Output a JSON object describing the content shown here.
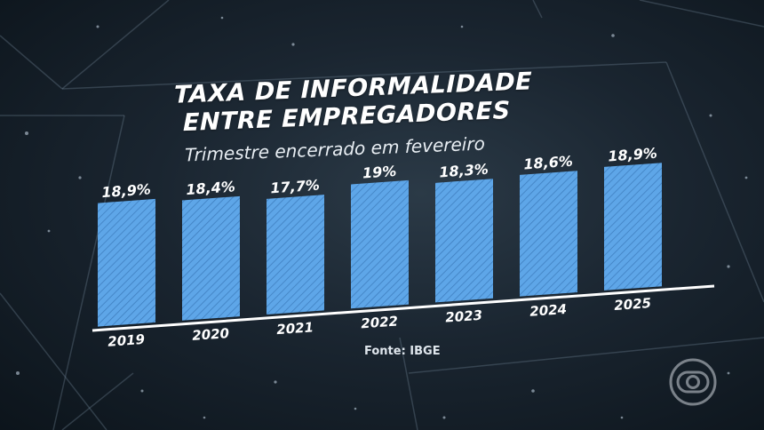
{
  "header": {
    "title_line1": "TAXA DE INFORMALIDADE",
    "title_line2": "ENTRE EMPREGADORES",
    "subtitle": "Trimestre encerrado em fevereiro"
  },
  "footer": {
    "source": "Fonte: IBGE"
  },
  "colors": {
    "bar": "#5ea6e8",
    "bar_stripe": "#3f7fc0",
    "baseline": "#ffffff",
    "text": "#ffffff"
  },
  "chart_data": {
    "type": "bar",
    "title": "TAXA DE INFORMALIDADE ENTRE EMPREGADORES",
    "subtitle": "Trimestre encerrado em fevereiro",
    "categories": [
      "2019",
      "2020",
      "2021",
      "2022",
      "2023",
      "2024",
      "2025"
    ],
    "values": [
      18.9,
      18.4,
      17.7,
      19.0,
      18.3,
      18.6,
      18.9
    ],
    "value_labels": [
      "18,9%",
      "18,4%",
      "17,7%",
      "19%",
      "18,3%",
      "18,6%",
      "18,9%"
    ],
    "xlabel": "",
    "ylabel": "",
    "grid": false,
    "legend": "none"
  }
}
